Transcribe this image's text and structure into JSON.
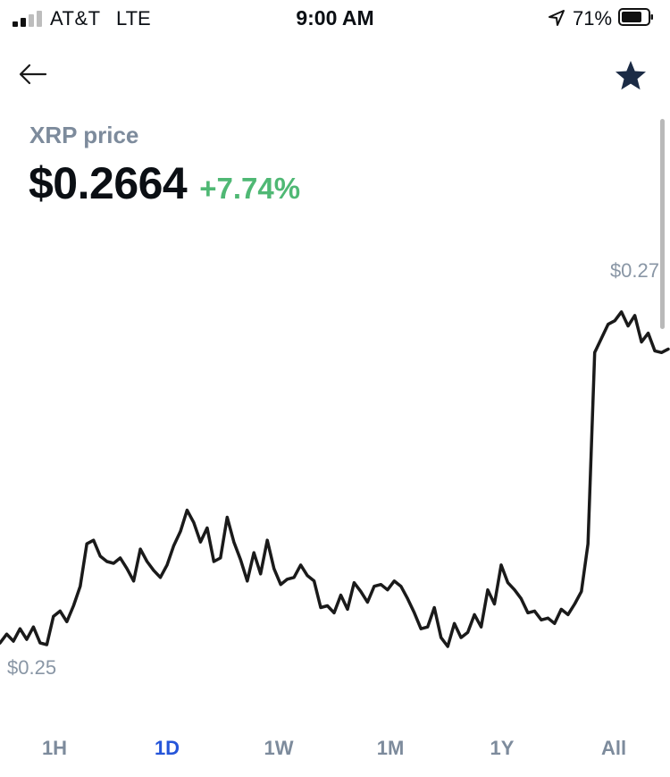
{
  "status_bar": {
    "carrier": "AT&T",
    "network": "LTE",
    "time": "9:00 AM",
    "battery_percent": "71%",
    "signal_bars": 2,
    "icons": [
      "signal-icon",
      "location-arrow-icon",
      "battery-icon"
    ]
  },
  "header": {
    "back_icon": "arrow-left-icon",
    "favorite_icon": "star-icon",
    "favorite_color": "#1b2b45"
  },
  "asset": {
    "label": "XRP price",
    "price": "$0.2664",
    "change": "+7.74%",
    "change_color": "#4fb874"
  },
  "chart": {
    "high_label": "$0.27",
    "low_label": "$0.25",
    "line_color": "#1a1a1a"
  },
  "chart_data": {
    "type": "line",
    "title": "",
    "xlabel": "",
    "ylabel": "",
    "ylim": [
      0.25,
      0.27
    ],
    "y_tick_labels": [
      "$0.25",
      "$0.27"
    ],
    "grid": false,
    "series": [
      {
        "values": [
          0.2503,
          0.2508,
          0.2504,
          0.2511,
          0.2505,
          0.2512,
          0.2503,
          0.2502,
          0.2518,
          0.2521,
          0.2515,
          0.2524,
          0.2535,
          0.2559,
          0.2561,
          0.2552,
          0.2549,
          0.2548,
          0.2551,
          0.2545,
          0.2538,
          0.2556,
          0.2549,
          0.2544,
          0.254,
          0.2547,
          0.2558,
          0.2566,
          0.2578,
          0.2571,
          0.256,
          0.2568,
          0.2549,
          0.2551,
          0.2574,
          0.256,
          0.255,
          0.2538,
          0.2554,
          0.2542,
          0.2561,
          0.2545,
          0.2536,
          0.2539,
          0.254,
          0.2547,
          0.2541,
          0.2538,
          0.2523,
          0.2524,
          0.252,
          0.253,
          0.2522,
          0.2537,
          0.2532,
          0.2526,
          0.2535,
          0.2536,
          0.2533,
          0.2538,
          0.2535,
          0.2528,
          0.252,
          0.2511,
          0.2512,
          0.2523,
          0.2506,
          0.2501,
          0.2514,
          0.2506,
          0.2509,
          0.2519,
          0.2512,
          0.2533,
          0.2525,
          0.2547,
          0.2537,
          0.2533,
          0.2528,
          0.252,
          0.2521,
          0.2516,
          0.2517,
          0.2514,
          0.2522,
          0.2519,
          0.2525,
          0.2532,
          0.2559,
          0.2667,
          0.2675,
          0.2683,
          0.2685,
          0.269,
          0.2682,
          0.2688,
          0.2673,
          0.2678,
          0.2668,
          0.2667,
          0.2669
        ]
      }
    ]
  },
  "ranges": {
    "tabs": [
      "1H",
      "1D",
      "1W",
      "1M",
      "1Y",
      "All"
    ],
    "active": "1D",
    "active_color": "#2555d9"
  }
}
